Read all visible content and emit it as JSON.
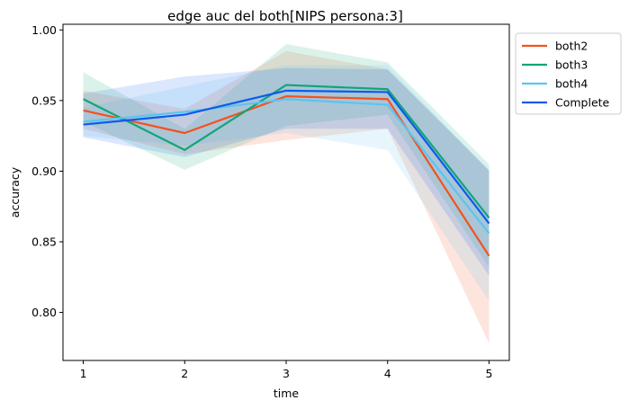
{
  "chart_data": {
    "type": "line",
    "title": "edge auc del both[NIPS persona:3]",
    "xlabel": "time",
    "ylabel": "accuracy",
    "x": [
      1,
      2,
      3,
      4,
      5
    ],
    "xticks": [
      "1",
      "2",
      "3",
      "4",
      "5"
    ],
    "xlim": [
      0.8,
      5.2
    ],
    "ylim": [
      0.766,
      1.004
    ],
    "yticks": [
      "0.80",
      "0.85",
      "0.90",
      "0.95",
      "1.00"
    ],
    "ytick_values": [
      0.8,
      0.85,
      0.9,
      0.95,
      1.0
    ],
    "grid": false,
    "legend_position": "outside-top-right",
    "series": [
      {
        "name": "both2",
        "color": "#f4511e",
        "values": [
          0.943,
          0.927,
          0.953,
          0.951,
          0.84
        ],
        "lower": [
          0.93,
          0.912,
          0.922,
          0.93,
          0.778
        ],
        "upper": [
          0.957,
          0.944,
          0.985,
          0.972,
          0.9
        ]
      },
      {
        "name": "both3",
        "color": "#0fa67a",
        "values": [
          0.951,
          0.915,
          0.961,
          0.958,
          0.867
        ],
        "lower": [
          0.935,
          0.901,
          0.932,
          0.94,
          0.832
        ],
        "upper": [
          0.97,
          0.93,
          0.99,
          0.977,
          0.905
        ]
      },
      {
        "name": "both4",
        "color": "#5bc4f0",
        "values": [
          0.935,
          0.942,
          0.951,
          0.947,
          0.856
        ],
        "lower": [
          0.925,
          0.918,
          0.927,
          0.915,
          0.808
        ],
        "upper": [
          0.945,
          0.96,
          0.975,
          0.975,
          0.9
        ]
      },
      {
        "name": "Complete",
        "color": "#0b5bed",
        "values": [
          0.933,
          0.94,
          0.957,
          0.956,
          0.863
        ],
        "lower": [
          0.924,
          0.91,
          0.93,
          0.93,
          0.826
        ],
        "upper": [
          0.955,
          0.967,
          0.973,
          0.972,
          0.901
        ]
      }
    ]
  }
}
